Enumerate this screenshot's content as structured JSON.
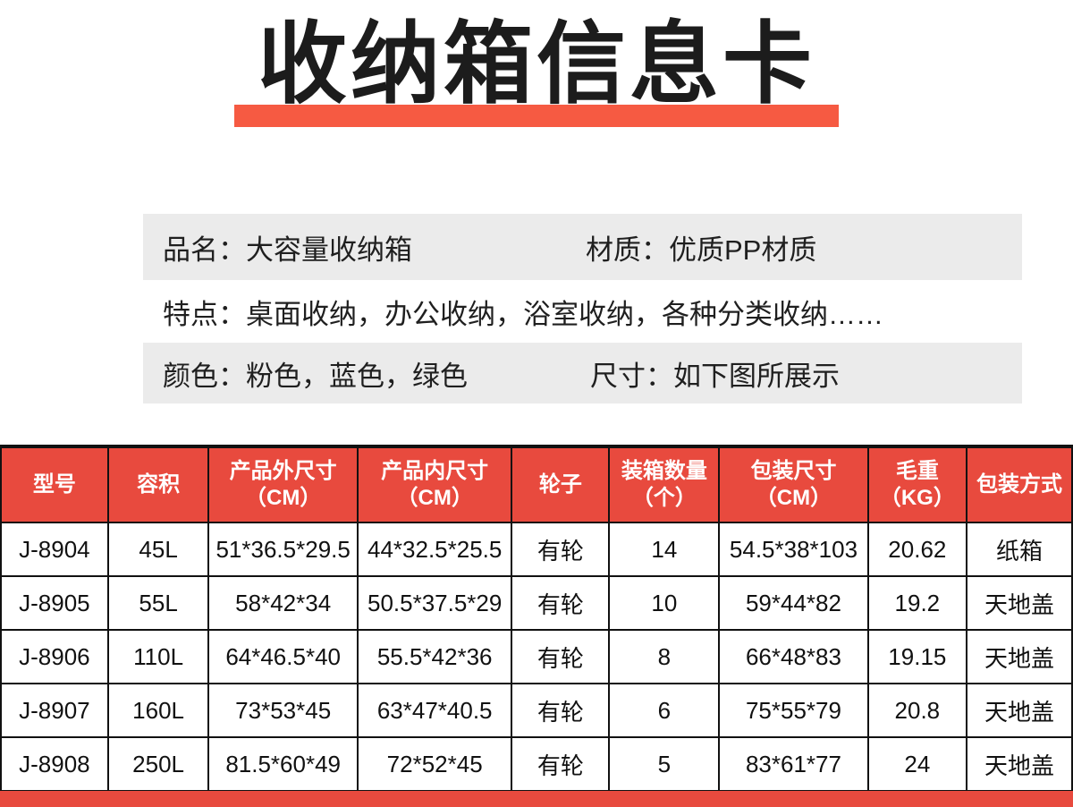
{
  "page": {
    "title": "收纳箱信息卡"
  },
  "colors": {
    "accent_red": "#e84a3e",
    "title_bar_orange": "#f65a42",
    "info_band_gray": "#ebebeb",
    "text_dark": "#1c1c1c",
    "table_border_black": "#111111",
    "header_text_white": "#ffffff"
  },
  "info": {
    "name_label": "品名：",
    "name_value": "大容量收纳箱",
    "material_label": "材质：",
    "material_value": "优质PP材质",
    "features_label": "特点：",
    "features_value": "桌面收纳，办公收纳，浴室收纳，各种分类收纳……",
    "color_label": "颜色：",
    "color_value": "粉色，蓝色，绿色",
    "size_label": "尺寸：",
    "size_value": "如下图所展示"
  },
  "table": {
    "columns": [
      {
        "id": "model",
        "label": "型号"
      },
      {
        "id": "capacity",
        "label": "容积"
      },
      {
        "id": "outer-size",
        "label": "产品外尺寸\n（CM）"
      },
      {
        "id": "inner-size",
        "label": "产品内尺寸\n（CM）"
      },
      {
        "id": "wheels",
        "label": "轮子"
      },
      {
        "id": "qty-per-carton",
        "label": "装箱数量\n（个）"
      },
      {
        "id": "package-size",
        "label": "包装尺寸\n（CM）"
      },
      {
        "id": "gross-weight",
        "label": "毛重\n（KG）"
      },
      {
        "id": "packing-method",
        "label": "包装方式"
      }
    ],
    "rows": [
      [
        "J-8904",
        "45L",
        "51*36.5*29.5",
        "44*32.5*25.5",
        "有轮",
        "14",
        "54.5*38*103",
        "20.62",
        "纸箱"
      ],
      [
        "J-8905",
        "55L",
        "58*42*34",
        "50.5*37.5*29",
        "有轮",
        "10",
        "59*44*82",
        "19.2",
        "天地盖"
      ],
      [
        "J-8906",
        "110L",
        "64*46.5*40",
        "55.5*42*36",
        "有轮",
        "8",
        "66*48*83",
        "19.15",
        "天地盖"
      ],
      [
        "J-8907",
        "160L",
        "73*53*45",
        "63*47*40.5",
        "有轮",
        "6",
        "75*55*79",
        "20.8",
        "天地盖"
      ],
      [
        "J-8908",
        "250L",
        "81.5*60*49",
        "72*52*45",
        "有轮",
        "5",
        "83*61*77",
        "24",
        "天地盖"
      ]
    ]
  }
}
